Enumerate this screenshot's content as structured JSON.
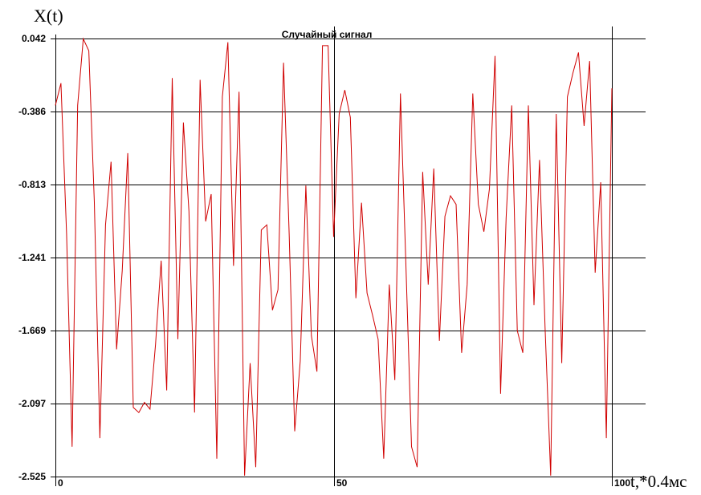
{
  "chart_data": {
    "type": "line",
    "title": "Случайный сигнал",
    "ylabel": "X(t)",
    "xlabel": "t,*0.4мс",
    "xlim": [
      0,
      100
    ],
    "ylim": [
      -2.525,
      0.042
    ],
    "x_ticks": [
      0,
      50,
      100
    ],
    "x_tick_labels": [
      "0",
      "50",
      "100"
    ],
    "y_ticks": [
      0.042,
      -0.386,
      -0.813,
      -1.241,
      -1.669,
      -2.097,
      -2.525
    ],
    "y_tick_labels": [
      "0.042",
      "-0.386",
      "-0.813",
      "-1.241",
      "-1.669",
      "-2.097",
      "-2.525"
    ],
    "grid": true,
    "line_color": "#d00000",
    "series": [
      {
        "values": [
          -0.35,
          -0.22,
          -1.1,
          -2.35,
          -0.35,
          0.04,
          -0.03,
          -0.92,
          -2.3,
          -1.05,
          -0.68,
          -1.78,
          -1.32,
          -0.63,
          -2.12,
          -2.15,
          -2.09,
          -2.13,
          -1.75,
          -1.26,
          -2.02,
          -0.19,
          -1.72,
          -0.45,
          -0.97,
          -2.15,
          -0.2,
          -1.03,
          -0.87,
          -2.42,
          -0.3,
          0.02,
          -1.29,
          -0.27,
          -2.52,
          -1.86,
          -2.47,
          -1.08,
          -1.05,
          -1.55,
          -1.43,
          -0.1,
          -1.1,
          -2.26,
          -1.85,
          -0.82,
          -1.7,
          -1.91,
          0.0,
          0.0,
          -1.12,
          -0.4,
          -0.26,
          -0.42,
          -1.48,
          -0.92,
          -1.45,
          -1.58,
          -1.72,
          -2.42,
          -1.4,
          -1.96,
          -0.28,
          -1.3,
          -2.35,
          -2.47,
          -0.74,
          -1.4,
          -0.72,
          -1.73,
          -1.0,
          -0.88,
          -0.93,
          -1.8,
          -1.4,
          -0.28,
          -0.93,
          -1.09,
          -0.84,
          -0.06,
          -2.04,
          -1.01,
          -0.35,
          -1.67,
          -1.8,
          -0.35,
          -1.52,
          -0.67,
          -1.65,
          -2.52,
          -0.4,
          -1.86,
          -0.3,
          -0.16,
          -0.04,
          -0.47,
          -0.09,
          -1.33,
          -0.8,
          -2.3,
          -0.25
        ]
      }
    ]
  }
}
